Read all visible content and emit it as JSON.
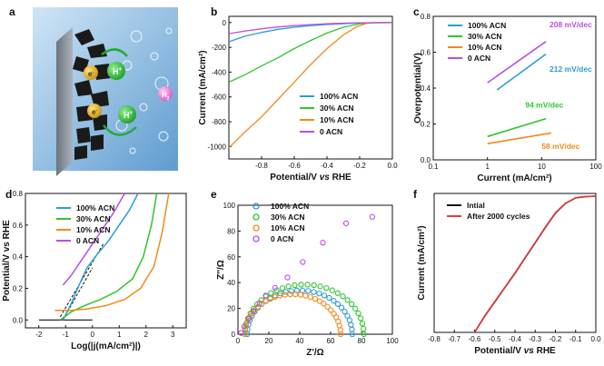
{
  "panels": {
    "a": {
      "letter": "a",
      "h_label": "H",
      "h_sup": "+",
      "h2_label": "H",
      "h2_sub": "2",
      "e_label": "e",
      "e_sup": "-"
    },
    "b": {
      "letter": "b"
    },
    "c": {
      "letter": "c"
    },
    "d": {
      "letter": "d"
    },
    "e": {
      "letter": "e"
    },
    "f": {
      "letter": "f"
    }
  },
  "colors": {
    "acn100": "#2f9bd8",
    "acn30": "#2ec52e",
    "acn10": "#f08a1c",
    "acn0": "#b84ee6",
    "initial": "#111111",
    "cycled": "#e23a3a"
  },
  "chart_data": [
    {
      "panel": "b",
      "type": "line",
      "xlabel": "Potential/V vs RHE",
      "ylabel": "Current (mA/cm²)",
      "xlim": [
        -1.0,
        0.0
      ],
      "ylim": [
        -1100,
        50
      ],
      "xticks": [
        "-0.8",
        "-0.6",
        "-0.4",
        "-0.2",
        "0.0"
      ],
      "yticks": [
        "0",
        "-200",
        "-400",
        "-600",
        "-800",
        "-1000"
      ],
      "legend_position": "lower-right",
      "series": [
        {
          "name": "100% ACN",
          "color_key": "acn100",
          "points": [
            [
              -1.0,
              -155
            ],
            [
              -0.9,
              -110
            ],
            [
              -0.8,
              -80
            ],
            [
              -0.7,
              -55
            ],
            [
              -0.6,
              -38
            ],
            [
              -0.5,
              -25
            ],
            [
              -0.4,
              -16
            ],
            [
              -0.3,
              -9
            ],
            [
              -0.2,
              -4
            ],
            [
              -0.15,
              -2
            ],
            [
              -0.1,
              -1
            ],
            [
              0.0,
              0
            ]
          ]
        },
        {
          "name": "30% ACN",
          "color_key": "acn30",
          "points": [
            [
              -1.0,
              -480
            ],
            [
              -0.9,
              -420
            ],
            [
              -0.8,
              -350
            ],
            [
              -0.7,
              -285
            ],
            [
              -0.6,
              -210
            ],
            [
              -0.5,
              -145
            ],
            [
              -0.4,
              -85
            ],
            [
              -0.3,
              -38
            ],
            [
              -0.2,
              -10
            ],
            [
              -0.15,
              -3
            ],
            [
              -0.1,
              -1
            ],
            [
              0.0,
              0
            ]
          ]
        },
        {
          "name": "10% ACN",
          "color_key": "acn10",
          "points": [
            [
              -1.0,
              -1010
            ],
            [
              -0.9,
              -880
            ],
            [
              -0.8,
              -760
            ],
            [
              -0.7,
              -620
            ],
            [
              -0.6,
              -480
            ],
            [
              -0.5,
              -340
            ],
            [
              -0.4,
              -210
            ],
            [
              -0.3,
              -100
            ],
            [
              -0.22,
              -35
            ],
            [
              -0.16,
              -8
            ],
            [
              -0.1,
              -1
            ],
            [
              0.0,
              0
            ]
          ]
        },
        {
          "name": "0 ACN",
          "color_key": "acn0",
          "points": [
            [
              -1.0,
              -90
            ],
            [
              -0.9,
              -68
            ],
            [
              -0.8,
              -50
            ],
            [
              -0.7,
              -36
            ],
            [
              -0.6,
              -25
            ],
            [
              -0.5,
              -17
            ],
            [
              -0.4,
              -10
            ],
            [
              -0.3,
              -5
            ],
            [
              -0.2,
              -2
            ],
            [
              -0.1,
              -1
            ],
            [
              0.0,
              0
            ]
          ]
        }
      ]
    },
    {
      "panel": "c",
      "type": "line",
      "xlabel": "Current (mA/cm²)",
      "ylabel": "Overpotential(V)",
      "x_scale": "log",
      "xlim": [
        0.1,
        100
      ],
      "ylim": [
        0,
        0.8
      ],
      "xticks": [
        "0.1",
        "1",
        "10",
        "100"
      ],
      "yticks": [
        "0.0",
        "0.2",
        "0.4",
        "0.6",
        "0.8"
      ],
      "legend_position": "top-left",
      "series": [
        {
          "name": "100% ACN",
          "color_key": "acn100",
          "slope_label": "212 mV/dec",
          "points": [
            [
              1.5,
              0.39
            ],
            [
              12,
              0.59
            ]
          ]
        },
        {
          "name": "30% ACN",
          "color_key": "acn30",
          "slope_label": "94 mV/dec",
          "points": [
            [
              1,
              0.13
            ],
            [
              12,
              0.23
            ]
          ]
        },
        {
          "name": "10% ACN",
          "color_key": "acn10",
          "slope_label": "58 mV/dec",
          "points": [
            [
              1,
              0.09
            ],
            [
              15,
              0.15
            ]
          ]
        },
        {
          "name": "0 ACN",
          "color_key": "acn0",
          "slope_label": "208 mV/dec",
          "points": [
            [
              1,
              0.43
            ],
            [
              12,
              0.66
            ]
          ]
        }
      ]
    },
    {
      "panel": "d",
      "type": "line",
      "xlabel": "Log(|j(mA/cm²)|)",
      "ylabel": "Potential/V vs RHE",
      "xlim": [
        -2.5,
        3.5
      ],
      "ylim": [
        -0.05,
        0.8
      ],
      "xticks": [
        "-2",
        "-1",
        "0",
        "1",
        "2",
        "3"
      ],
      "yticks": [
        "0.0",
        "0.2",
        "0.4",
        "0.6",
        "0.8"
      ],
      "legend_position": "top-left",
      "baseline": [
        [
          -2.0,
          0.0
        ],
        [
          0.0,
          0.0
        ]
      ],
      "tangents": [
        [
          [
            -1.2,
            0.02
          ],
          [
            0.4,
            0.48
          ]
        ],
        [
          [
            -1.1,
            0.0
          ],
          [
            0.0,
            0.33
          ]
        ]
      ],
      "series": [
        {
          "name": "100% ACN",
          "color_key": "acn100",
          "points": [
            [
              -1.1,
              0.0
            ],
            [
              -0.8,
              0.1
            ],
            [
              -0.5,
              0.22
            ],
            [
              -0.2,
              0.33
            ],
            [
              0.2,
              0.42
            ],
            [
              0.6,
              0.5
            ],
            [
              1.0,
              0.6
            ],
            [
              1.4,
              0.7
            ],
            [
              1.7,
              0.8
            ]
          ]
        },
        {
          "name": "30% ACN",
          "color_key": "acn30",
          "points": [
            [
              -1.2,
              0.0
            ],
            [
              -0.8,
              0.05
            ],
            [
              -0.3,
              0.09
            ],
            [
              0.3,
              0.13
            ],
            [
              0.9,
              0.18
            ],
            [
              1.5,
              0.26
            ],
            [
              1.9,
              0.4
            ],
            [
              2.2,
              0.6
            ],
            [
              2.4,
              0.8
            ]
          ]
        },
        {
          "name": "10% ACN",
          "color_key": "acn10",
          "points": [
            [
              -1.4,
              0.06
            ],
            [
              -0.8,
              0.06
            ],
            [
              -0.2,
              0.07
            ],
            [
              0.5,
              0.09
            ],
            [
              1.2,
              0.13
            ],
            [
              1.8,
              0.2
            ],
            [
              2.3,
              0.34
            ],
            [
              2.6,
              0.55
            ],
            [
              2.85,
              0.8
            ]
          ]
        },
        {
          "name": "0 ACN",
          "color_key": "acn0",
          "points": [
            [
              -1.1,
              0.22
            ],
            [
              -0.8,
              0.28
            ],
            [
              -0.4,
              0.38
            ],
            [
              0.0,
              0.48
            ],
            [
              0.4,
              0.58
            ],
            [
              0.8,
              0.68
            ],
            [
              1.2,
              0.8
            ]
          ]
        }
      ]
    },
    {
      "panel": "e",
      "type": "scatter",
      "xlabel": "Z'/Ω",
      "ylabel": "Z''/Ω",
      "xlim": [
        0,
        100
      ],
      "ylim": [
        0,
        100
      ],
      "xticks": [
        "0",
        "20",
        "40",
        "60",
        "80",
        "100"
      ],
      "yticks": [
        "0",
        "20",
        "40",
        "60",
        "80",
        "100"
      ],
      "legend_position": "top-left",
      "series": [
        {
          "name": "100% ACN",
          "color_key": "acn100",
          "center": 40,
          "radius": 34,
          "points": 30
        },
        {
          "name": "30% ACN",
          "color_key": "acn30",
          "center": 43,
          "radius": 38.5,
          "points": 30
        },
        {
          "name": "10% ACN",
          "color_key": "acn10",
          "center": 35.5,
          "radius": 31,
          "points": 30
        },
        {
          "name": "0 ACN",
          "color_key": "acn0",
          "arc_center": 55,
          "arc_radius": 54,
          "points_xy": [
            [
              2,
              1
            ],
            [
              4,
              6
            ],
            [
              7,
              12
            ],
            [
              10,
              18
            ],
            [
              14,
              24
            ],
            [
              18,
              30
            ],
            [
              24,
              36
            ],
            [
              32,
              44
            ],
            [
              42,
              56
            ],
            [
              55,
              71
            ],
            [
              70,
              86
            ],
            [
              87,
              91
            ]
          ]
        }
      ]
    },
    {
      "panel": "f",
      "type": "line",
      "xlabel": "Potential/V vs RHE",
      "ylabel": "Current (mA/cm²)",
      "xlim": [
        -0.8,
        0.0
      ],
      "ylim": [
        -760,
        15
      ],
      "xticks": [
        "-0.8",
        "-0.7",
        "-0.6",
        "-0.5",
        "-0.4",
        "-0.3",
        "-0.2",
        "-0.1",
        "0.0"
      ],
      "yticks": [],
      "legend_position": "top-left",
      "series": [
        {
          "name": "Intial",
          "color_key": "initial",
          "points": [
            [
              -0.6,
              -760
            ],
            [
              -0.55,
              -670
            ],
            [
              -0.5,
              -590
            ],
            [
              -0.45,
              -510
            ],
            [
              -0.4,
              -430
            ],
            [
              -0.35,
              -345
            ],
            [
              -0.3,
              -260
            ],
            [
              -0.25,
              -175
            ],
            [
              -0.2,
              -95
            ],
            [
              -0.15,
              -40
            ],
            [
              -0.1,
              -10
            ],
            [
              -0.05,
              -2
            ],
            [
              0.0,
              0
            ]
          ]
        },
        {
          "name": "After 2000 cycles",
          "color_key": "cycled",
          "points": [
            [
              -0.6,
              -760
            ],
            [
              -0.55,
              -668
            ],
            [
              -0.5,
              -588
            ],
            [
              -0.45,
              -508
            ],
            [
              -0.4,
              -428
            ],
            [
              -0.35,
              -343
            ],
            [
              -0.3,
              -258
            ],
            [
              -0.25,
              -173
            ],
            [
              -0.2,
              -93
            ],
            [
              -0.15,
              -39
            ],
            [
              -0.1,
              -10
            ],
            [
              -0.05,
              -2
            ],
            [
              0.0,
              0
            ]
          ]
        }
      ]
    }
  ]
}
